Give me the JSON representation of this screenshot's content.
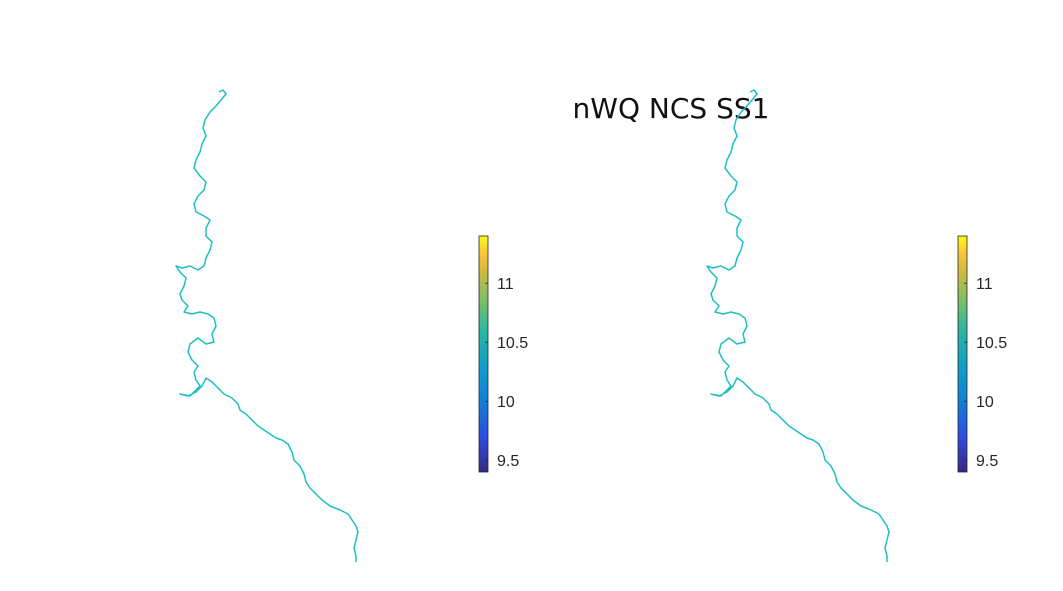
{
  "title": "nWQ NCS SS1",
  "chart_data": [
    {
      "type": "heatmap",
      "colorbar": {
        "ticks": [
          9.5,
          10,
          10.5,
          11
        ],
        "tick_labels": [
          "9.5",
          "10",
          "10.5",
          "11"
        ],
        "clim": [
          9.4,
          11.4
        ],
        "colormap": "parula"
      },
      "river_color": "#1ebfbf"
    },
    {
      "type": "heatmap",
      "colorbar": {
        "ticks": [
          9.5,
          10,
          10.5,
          11
        ],
        "tick_labels": [
          "9.5",
          "10",
          "10.5",
          "11"
        ],
        "clim": [
          9.4,
          11.4
        ],
        "colormap": "parula"
      },
      "river_color": "#1ebfbf"
    }
  ]
}
